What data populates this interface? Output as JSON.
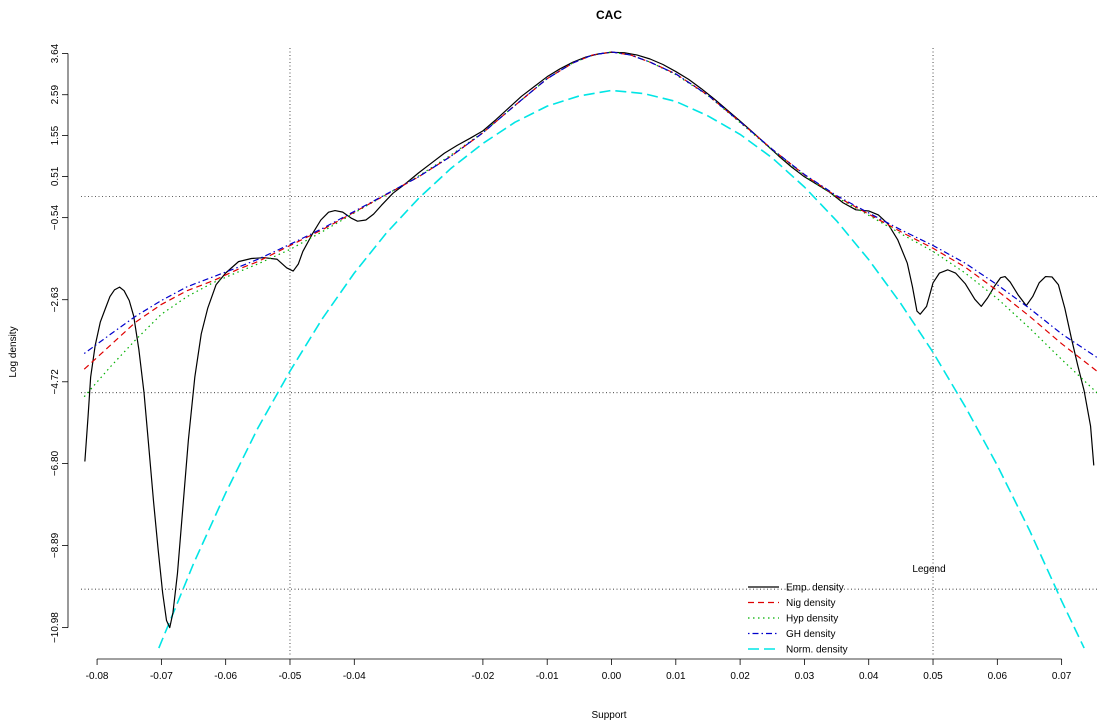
{
  "chart_data": {
    "type": "line",
    "title": "CAC",
    "xlabel": "Support",
    "ylabel": "Log density",
    "xlim": [
      -0.0825,
      0.0755
    ],
    "ylim": [
      -11.55,
      3.78
    ],
    "x_ticks": [
      {
        "value": -0.08,
        "label": "-0.08"
      },
      {
        "value": -0.07,
        "label": "-0.07"
      },
      {
        "value": -0.06,
        "label": "-0.06"
      },
      {
        "value": -0.05,
        "label": "-0.05"
      },
      {
        "value": -0.04,
        "label": "-0.04"
      },
      {
        "value": -0.02,
        "label": "-0.02"
      },
      {
        "value": -0.01,
        "label": "-0.01"
      },
      {
        "value": 0.0,
        "label": "0.00"
      },
      {
        "value": 0.01,
        "label": "0.01"
      },
      {
        "value": 0.02,
        "label": "0.02"
      },
      {
        "value": 0.03,
        "label": "0.03"
      },
      {
        "value": 0.04,
        "label": "0.04"
      },
      {
        "value": 0.05,
        "label": "0.05"
      },
      {
        "value": 0.06,
        "label": "0.06"
      },
      {
        "value": 0.07,
        "label": "0.07"
      }
    ],
    "y_ticks": [
      {
        "value": 3.64,
        "label": "3.64"
      },
      {
        "value": 2.59,
        "label": "2.59"
      },
      {
        "value": 1.55,
        "label": "1.55"
      },
      {
        "value": 0.51,
        "label": "0.51"
      },
      {
        "value": -0.54,
        "label": "−0.54"
      },
      {
        "value": -2.63,
        "label": "−2.63"
      },
      {
        "value": -4.72,
        "label": "−4.72"
      },
      {
        "value": -6.8,
        "label": "−6.80"
      },
      {
        "value": -8.89,
        "label": "−8.89"
      },
      {
        "value": -10.98,
        "label": "−10.98"
      }
    ],
    "grid": {
      "vertical": [
        -0.05,
        0.05
      ],
      "horizontal": [
        0.0,
        -5.0,
        -10.0
      ]
    },
    "legend": {
      "title": "Legend",
      "placement": "bottom-right",
      "entries": [
        {
          "label": "Emp. density",
          "color": "#000000",
          "dash": "solid"
        },
        {
          "label": "Nig density",
          "color": "#DF0000",
          "dash": "dashed"
        },
        {
          "label": "Hyp density",
          "color": "#00B000",
          "dash": "dotted"
        },
        {
          "label": "GH density",
          "color": "#0000CC",
          "dash": "dotdash"
        },
        {
          "label": "Norm. density",
          "color": "#00E5E5",
          "dash": "longdash"
        }
      ]
    },
    "series": [
      {
        "name": "Emp. density",
        "color": "#000000",
        "dash": "solid",
        "points": [
          [
            -0.0819,
            -6.75
          ],
          [
            -0.0814,
            -5.6
          ],
          [
            -0.081,
            -4.6
          ],
          [
            -0.0803,
            -3.8
          ],
          [
            -0.0795,
            -3.2
          ],
          [
            -0.0787,
            -2.85
          ],
          [
            -0.078,
            -2.55
          ],
          [
            -0.0773,
            -2.38
          ],
          [
            -0.0765,
            -2.31
          ],
          [
            -0.0758,
            -2.4
          ],
          [
            -0.075,
            -2.65
          ],
          [
            -0.0743,
            -3.05
          ],
          [
            -0.0735,
            -3.9
          ],
          [
            -0.0727,
            -5.0
          ],
          [
            -0.072,
            -6.3
          ],
          [
            -0.0712,
            -7.8
          ],
          [
            -0.0705,
            -9.0
          ],
          [
            -0.0698,
            -10.1
          ],
          [
            -0.0692,
            -10.8
          ],
          [
            -0.0687,
            -10.98
          ],
          [
            -0.0682,
            -10.6
          ],
          [
            -0.0675,
            -9.6
          ],
          [
            -0.0667,
            -8.0
          ],
          [
            -0.0658,
            -6.2
          ],
          [
            -0.0648,
            -4.6
          ],
          [
            -0.0638,
            -3.5
          ],
          [
            -0.0628,
            -2.85
          ],
          [
            -0.0615,
            -2.25
          ],
          [
            -0.06,
            -1.95
          ],
          [
            -0.058,
            -1.66
          ],
          [
            -0.056,
            -1.58
          ],
          [
            -0.054,
            -1.56
          ],
          [
            -0.052,
            -1.6
          ],
          [
            -0.0505,
            -1.82
          ],
          [
            -0.0495,
            -1.9
          ],
          [
            -0.0487,
            -1.72
          ],
          [
            -0.048,
            -1.4
          ],
          [
            -0.0465,
            -0.95
          ],
          [
            -0.0452,
            -0.6
          ],
          [
            -0.044,
            -0.4
          ],
          [
            -0.043,
            -0.36
          ],
          [
            -0.0418,
            -0.4
          ],
          [
            -0.0405,
            -0.55
          ],
          [
            -0.0395,
            -0.63
          ],
          [
            -0.0382,
            -0.6
          ],
          [
            -0.037,
            -0.45
          ],
          [
            -0.0358,
            -0.23
          ],
          [
            -0.034,
            0.08
          ],
          [
            -0.032,
            0.33
          ],
          [
            -0.03,
            0.6
          ],
          [
            -0.028,
            0.85
          ],
          [
            -0.026,
            1.1
          ],
          [
            -0.024,
            1.3
          ],
          [
            -0.022,
            1.48
          ],
          [
            -0.02,
            1.67
          ],
          [
            -0.018,
            1.95
          ],
          [
            -0.016,
            2.25
          ],
          [
            -0.014,
            2.55
          ],
          [
            -0.012,
            2.8
          ],
          [
            -0.01,
            3.05
          ],
          [
            -0.008,
            3.25
          ],
          [
            -0.006,
            3.42
          ],
          [
            -0.004,
            3.55
          ],
          [
            -0.002,
            3.63
          ],
          [
            0.0,
            3.67
          ],
          [
            0.002,
            3.66
          ],
          [
            0.004,
            3.6
          ],
          [
            0.006,
            3.5
          ],
          [
            0.008,
            3.36
          ],
          [
            0.01,
            3.18
          ],
          [
            0.012,
            2.98
          ],
          [
            0.014,
            2.74
          ],
          [
            0.016,
            2.48
          ],
          [
            0.018,
            2.2
          ],
          [
            0.02,
            1.92
          ],
          [
            0.022,
            1.63
          ],
          [
            0.024,
            1.33
          ],
          [
            0.026,
            1.03
          ],
          [
            0.028,
            0.75
          ],
          [
            0.03,
            0.5
          ],
          [
            0.032,
            0.3
          ],
          [
            0.034,
            0.1
          ],
          [
            0.036,
            -0.16
          ],
          [
            0.038,
            -0.34
          ],
          [
            0.04,
            -0.37
          ],
          [
            0.0415,
            -0.47
          ],
          [
            0.043,
            -0.7
          ],
          [
            0.0445,
            -1.1
          ],
          [
            0.046,
            -1.7
          ],
          [
            0.0468,
            -2.3
          ],
          [
            0.0475,
            -2.92
          ],
          [
            0.048,
            -3.0
          ],
          [
            0.049,
            -2.8
          ],
          [
            0.05,
            -2.2
          ],
          [
            0.051,
            -1.95
          ],
          [
            0.0523,
            -1.87
          ],
          [
            0.0535,
            -1.95
          ],
          [
            0.055,
            -2.22
          ],
          [
            0.0565,
            -2.62
          ],
          [
            0.0575,
            -2.8
          ],
          [
            0.0585,
            -2.58
          ],
          [
            0.0595,
            -2.3
          ],
          [
            0.0605,
            -2.07
          ],
          [
            0.0612,
            -2.04
          ],
          [
            0.062,
            -2.18
          ],
          [
            0.0632,
            -2.5
          ],
          [
            0.0645,
            -2.78
          ],
          [
            0.0655,
            -2.55
          ],
          [
            0.0665,
            -2.2
          ],
          [
            0.0675,
            -2.04
          ],
          [
            0.0685,
            -2.05
          ],
          [
            0.0695,
            -2.25
          ],
          [
            0.0705,
            -2.85
          ],
          [
            0.0715,
            -3.6
          ],
          [
            0.0725,
            -4.3
          ],
          [
            0.0735,
            -4.95
          ],
          [
            0.0745,
            -5.85
          ],
          [
            0.075,
            -6.85
          ]
        ]
      },
      {
        "name": "Nig density",
        "color": "#DF0000",
        "dash": "dashed",
        "points": [
          [
            -0.082,
            -4.4
          ],
          [
            -0.078,
            -3.8
          ],
          [
            -0.074,
            -3.2
          ],
          [
            -0.07,
            -2.75
          ],
          [
            -0.066,
            -2.4
          ],
          [
            -0.062,
            -2.15
          ],
          [
            -0.06,
            -2.0
          ],
          [
            -0.058,
            -1.85
          ],
          [
            -0.055,
            -1.66
          ],
          [
            -0.05,
            -1.25
          ],
          [
            -0.045,
            -0.85
          ],
          [
            -0.04,
            -0.4
          ],
          [
            -0.035,
            0.05
          ],
          [
            -0.03,
            0.5
          ],
          [
            -0.025,
            1.02
          ],
          [
            -0.02,
            1.62
          ],
          [
            -0.015,
            2.32
          ],
          [
            -0.01,
            3.0
          ],
          [
            -0.006,
            3.4
          ],
          [
            -0.003,
            3.6
          ],
          [
            0.0,
            3.68
          ],
          [
            0.003,
            3.6
          ],
          [
            0.006,
            3.42
          ],
          [
            0.01,
            3.12
          ],
          [
            0.015,
            2.58
          ],
          [
            0.02,
            1.9
          ],
          [
            0.025,
            1.2
          ],
          [
            0.03,
            0.55
          ],
          [
            0.035,
            0.0
          ],
          [
            0.04,
            -0.45
          ],
          [
            0.045,
            -0.9
          ],
          [
            0.05,
            -1.32
          ],
          [
            0.055,
            -1.8
          ],
          [
            0.06,
            -2.4
          ],
          [
            0.065,
            -3.05
          ],
          [
            0.07,
            -3.75
          ],
          [
            0.0755,
            -4.45
          ]
        ]
      },
      {
        "name": "Hyp density",
        "color": "#00B000",
        "dash": "dotted",
        "points": [
          [
            -0.082,
            -5.1
          ],
          [
            -0.078,
            -4.35
          ],
          [
            -0.074,
            -3.65
          ],
          [
            -0.07,
            -3.0
          ],
          [
            -0.066,
            -2.55
          ],
          [
            -0.062,
            -2.2
          ],
          [
            -0.058,
            -1.92
          ],
          [
            -0.055,
            -1.72
          ],
          [
            -0.05,
            -1.35
          ],
          [
            -0.045,
            -0.9
          ],
          [
            -0.04,
            -0.42
          ],
          [
            -0.035,
            0.05
          ],
          [
            -0.03,
            0.52
          ],
          [
            -0.025,
            1.05
          ],
          [
            -0.02,
            1.63
          ],
          [
            -0.015,
            2.32
          ],
          [
            -0.01,
            3.0
          ],
          [
            -0.006,
            3.4
          ],
          [
            -0.003,
            3.6
          ],
          [
            0.0,
            3.68
          ],
          [
            0.003,
            3.6
          ],
          [
            0.006,
            3.42
          ],
          [
            0.01,
            3.1
          ],
          [
            0.015,
            2.57
          ],
          [
            0.02,
            1.88
          ],
          [
            0.025,
            1.18
          ],
          [
            0.03,
            0.53
          ],
          [
            0.035,
            -0.02
          ],
          [
            0.04,
            -0.48
          ],
          [
            0.045,
            -0.95
          ],
          [
            0.05,
            -1.4
          ],
          [
            0.055,
            -1.95
          ],
          [
            0.06,
            -2.6
          ],
          [
            0.065,
            -3.35
          ],
          [
            0.07,
            -4.15
          ],
          [
            0.0755,
            -5.0
          ]
        ]
      },
      {
        "name": "GH density",
        "color": "#0000CC",
        "dash": "dotdash",
        "points": [
          [
            -0.082,
            -4.0
          ],
          [
            -0.078,
            -3.52
          ],
          [
            -0.074,
            -3.05
          ],
          [
            -0.07,
            -2.65
          ],
          [
            -0.066,
            -2.3
          ],
          [
            -0.062,
            -2.05
          ],
          [
            -0.058,
            -1.8
          ],
          [
            -0.055,
            -1.6
          ],
          [
            -0.05,
            -1.22
          ],
          [
            -0.045,
            -0.82
          ],
          [
            -0.04,
            -0.38
          ],
          [
            -0.035,
            0.06
          ],
          [
            -0.03,
            0.5
          ],
          [
            -0.025,
            1.02
          ],
          [
            -0.02,
            1.62
          ],
          [
            -0.015,
            2.32
          ],
          [
            -0.01,
            3.0
          ],
          [
            -0.006,
            3.4
          ],
          [
            -0.003,
            3.6
          ],
          [
            0.0,
            3.68
          ],
          [
            0.003,
            3.6
          ],
          [
            0.006,
            3.42
          ],
          [
            0.01,
            3.12
          ],
          [
            0.015,
            2.58
          ],
          [
            0.02,
            1.9
          ],
          [
            0.025,
            1.2
          ],
          [
            0.03,
            0.56
          ],
          [
            0.035,
            0.02
          ],
          [
            0.04,
            -0.42
          ],
          [
            0.045,
            -0.85
          ],
          [
            0.05,
            -1.25
          ],
          [
            0.055,
            -1.7
          ],
          [
            0.06,
            -2.25
          ],
          [
            0.065,
            -2.85
          ],
          [
            0.07,
            -3.5
          ],
          [
            0.0755,
            -4.1
          ]
        ]
      },
      {
        "name": "Norm. density",
        "color": "#00E5E5",
        "dash": "longdash",
        "points": [
          [
            -0.0704,
            -11.5
          ],
          [
            -0.068,
            -10.55
          ],
          [
            -0.065,
            -9.35
          ],
          [
            -0.06,
            -7.55
          ],
          [
            -0.055,
            -5.9
          ],
          [
            -0.05,
            -4.45
          ],
          [
            -0.045,
            -3.12
          ],
          [
            -0.04,
            -1.95
          ],
          [
            -0.035,
            -0.93
          ],
          [
            -0.03,
            -0.05
          ],
          [
            -0.025,
            0.71
          ],
          [
            -0.02,
            1.35
          ],
          [
            -0.015,
            1.89
          ],
          [
            -0.01,
            2.3
          ],
          [
            -0.005,
            2.56
          ],
          [
            0.0,
            2.7
          ],
          [
            0.005,
            2.62
          ],
          [
            0.01,
            2.42
          ],
          [
            0.015,
            2.05
          ],
          [
            0.02,
            1.58
          ],
          [
            0.025,
            0.98
          ],
          [
            0.03,
            0.24
          ],
          [
            0.035,
            -0.62
          ],
          [
            0.04,
            -1.61
          ],
          [
            0.045,
            -2.73
          ],
          [
            0.05,
            -3.97
          ],
          [
            0.055,
            -5.35
          ],
          [
            0.06,
            -6.85
          ],
          [
            0.065,
            -8.5
          ],
          [
            0.07,
            -10.3
          ],
          [
            0.0735,
            -11.5
          ]
        ]
      }
    ]
  }
}
